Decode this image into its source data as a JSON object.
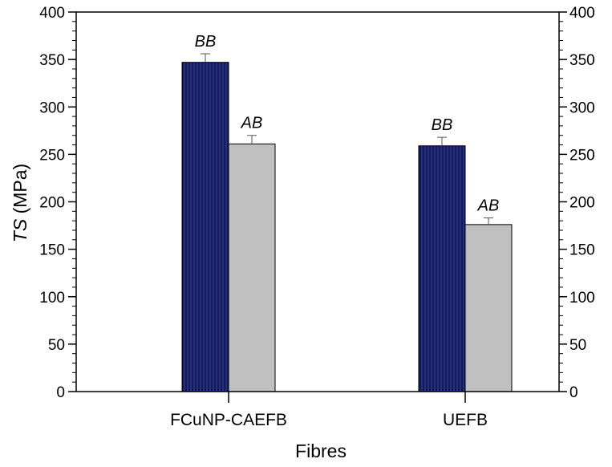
{
  "chart_data": {
    "type": "bar",
    "ylabel_italic": "TS",
    "ylabel_unit": " (MPa)",
    "xlabel": "Fibres",
    "categories": [
      "FCuNP-CAEFB",
      "UEFB"
    ],
    "series": [
      {
        "values": [
          347,
          259
        ],
        "errors": [
          9,
          9
        ],
        "labels": [
          "BB",
          "BB"
        ],
        "color": "#141a55",
        "hatch_color": "#2a3aa0"
      },
      {
        "values": [
          261,
          176
        ],
        "errors": [
          9,
          7
        ],
        "labels": [
          "AB",
          "AB"
        ],
        "color": "#c0c0c0"
      }
    ],
    "ylim": [
      0,
      400
    ],
    "yticks": [
      "0",
      "50",
      "100",
      "150",
      "200",
      "250",
      "300",
      "350",
      "400"
    ],
    "minor_tick_step": 10,
    "right_axis_mirrored": true,
    "grid": false,
    "legend": "none"
  }
}
